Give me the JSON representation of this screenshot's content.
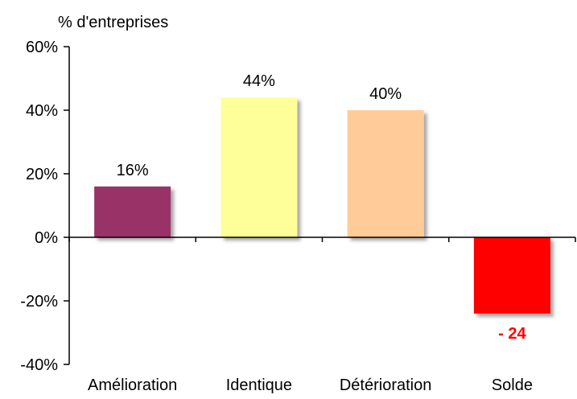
{
  "chart_data": {
    "type": "bar",
    "title": "",
    "ylabel": "% d'entreprises",
    "xlabel": "",
    "ylim": [
      -40,
      60
    ],
    "yticks": [
      60,
      40,
      20,
      0,
      -20,
      -40
    ],
    "ytick_labels": [
      "60%",
      "40%",
      "20%",
      "0%",
      "-20%",
      "-40%"
    ],
    "categories": [
      "Amélioration",
      "Identique",
      "Détérioration",
      "Solde"
    ],
    "values": [
      16,
      44,
      40,
      -24
    ],
    "value_labels": [
      "16%",
      "44%",
      "40%",
      "- 24"
    ],
    "bar_colors": [
      "#993366",
      "#FFFF99",
      "#FFCC99",
      "#FF0000"
    ],
    "value_label_colors": [
      "#000000",
      "#000000",
      "#000000",
      "#FF0000"
    ],
    "grid": false,
    "legend": "none"
  }
}
